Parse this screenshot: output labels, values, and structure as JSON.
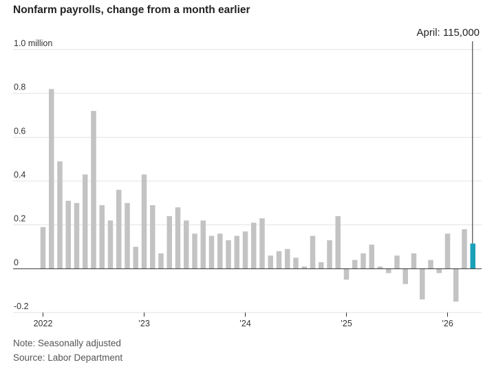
{
  "title": "Nonfarm payrolls, change from a month earlier",
  "annotation": "April: 115,000",
  "note": "Note: Seasonally adjusted",
  "source": "Source: Labor Department",
  "colors": {
    "bar": "#c3c3c3",
    "highlight": "#1aa0b8",
    "grid": "#e3e3e3",
    "axis": "#333333"
  },
  "chart_data": {
    "type": "bar",
    "ylim": [
      -0.2,
      1.0
    ],
    "y_ticks": [
      {
        "value": 1.0,
        "label": "1.0 million"
      },
      {
        "value": 0.8,
        "label": "0.8"
      },
      {
        "value": 0.6,
        "label": "0.6"
      },
      {
        "value": 0.4,
        "label": "0.4"
      },
      {
        "value": 0.2,
        "label": "0.2"
      },
      {
        "value": 0.0,
        "label": "0"
      },
      {
        "value": -0.2,
        "label": "-0.2"
      }
    ],
    "x_ticks": [
      {
        "label": "2022",
        "index": 0
      },
      {
        "label": "’23",
        "index": 12
      },
      {
        "label": "’24",
        "index": 24
      },
      {
        "label": "’25",
        "index": 36
      },
      {
        "label": "’26",
        "index": 48
      }
    ],
    "grid": true,
    "highlight_index": 51,
    "values": [
      0.19,
      0.82,
      0.49,
      0.31,
      0.3,
      0.43,
      0.72,
      0.29,
      0.22,
      0.36,
      0.3,
      0.1,
      0.43,
      0.29,
      0.07,
      0.24,
      0.28,
      0.22,
      0.16,
      0.22,
      0.15,
      0.16,
      0.13,
      0.15,
      0.17,
      0.21,
      0.23,
      0.06,
      0.08,
      0.09,
      0.05,
      0.01,
      0.15,
      0.03,
      0.13,
      0.24,
      -0.05,
      0.04,
      0.07,
      0.11,
      0.01,
      -0.02,
      0.06,
      -0.07,
      0.07,
      -0.14,
      0.04,
      -0.02,
      0.16,
      -0.15,
      0.18,
      0.115
    ]
  }
}
